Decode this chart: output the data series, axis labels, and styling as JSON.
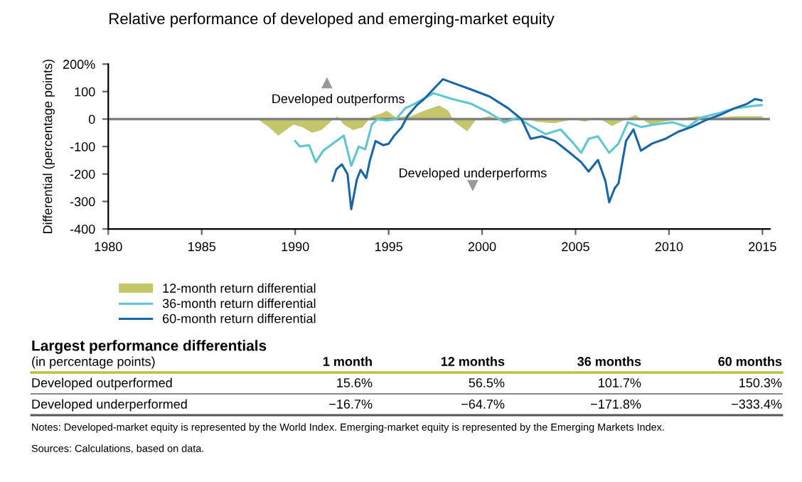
{
  "chart_data": {
    "type": "line",
    "title": "Relative performance of developed and emerging-market equity",
    "ylabel": "Differential (percentage points)",
    "xlim": [
      1980,
      2015.4
    ],
    "xticks": [
      1980,
      1985,
      1990,
      1995,
      2000,
      2005,
      2010,
      2015
    ],
    "ylim": [
      -400,
      200
    ],
    "yticks": [
      -400,
      -300,
      -200,
      -100,
      0,
      100,
      {
        "value": 200,
        "label": "200%"
      }
    ],
    "ref_lines": [
      {
        "axis": "y",
        "value": 0,
        "color": "#808080"
      }
    ],
    "legend": "bottom left",
    "grid": false,
    "series": [
      {
        "name": "12-month return differential",
        "type": "area",
        "color": "#c3c76a",
        "x": [
          1988.0,
          1988.6,
          1989.1,
          1989.5,
          1989.9,
          1990.4,
          1990.9,
          1991.4,
          1991.9,
          1992.25,
          1992.6,
          1993.1,
          1993.6,
          1994.1,
          1994.6,
          1994.9,
          1995.4,
          1995.9,
          1996.2,
          1996.9,
          1997.7,
          1998.2,
          1998.5,
          1999.2,
          1999.7,
          2000.4,
          2001.2,
          2002.2,
          2002.9,
          2003.9,
          2004.9,
          2005.5,
          2006.2,
          2006.95,
          2007.7,
          2008.2,
          2009.0,
          2009.7,
          2010.5,
          2011.5,
          2012.5,
          2013.5,
          2015.0
        ],
        "values": [
          0,
          -30,
          -60,
          -40,
          -20,
          -30,
          -50,
          -40,
          -10,
          10,
          -20,
          -40,
          -30,
          10,
          20,
          30,
          5,
          10,
          10,
          30,
          50,
          30,
          -10,
          -45,
          0,
          10,
          -10,
          5,
          -10,
          -15,
          0,
          -10,
          5,
          -25,
          0,
          15,
          -20,
          -10,
          0,
          10,
          5,
          10,
          10
        ]
      },
      {
        "name": "36-month return differential",
        "color": "#5cc6d2",
        "x": [
          1990.0,
          1990.25,
          1990.75,
          1991.1,
          1991.5,
          1992.1,
          1992.6,
          1993.0,
          1993.4,
          1993.75,
          1994.1,
          1994.4,
          1994.9,
          1995.4,
          1995.9,
          1996.4,
          1997.4,
          1998.4,
          1999.4,
          2000.4,
          2001.2,
          2001.9,
          2002.7,
          2003.4,
          2004.2,
          2004.9,
          2005.3,
          2005.7,
          2006.2,
          2006.8,
          2007.3,
          2007.8,
          2008.5,
          2009.2,
          2010.2,
          2011.0,
          2011.7,
          2012.7,
          2013.5,
          2014.5,
          2014.95
        ],
        "values": [
          -80,
          -100,
          -95,
          -157,
          -115,
          -85,
          -60,
          -170,
          -100,
          -110,
          -20,
          0,
          -5,
          0,
          40,
          56,
          94,
          73,
          56,
          22,
          -12,
          5,
          -29,
          -55,
          -38,
          -89,
          -123,
          -72,
          -63,
          -123,
          -89,
          -12,
          -29,
          -20,
          -12,
          -29,
          5,
          22,
          39,
          48,
          51
        ]
      },
      {
        "name": "60-month return differential",
        "color": "#1666a8",
        "x": [
          1992.0,
          1992.2,
          1992.5,
          1992.8,
          1993.0,
          1993.3,
          1993.5,
          1993.8,
          1994.0,
          1994.3,
          1994.7,
          1995.0,
          1995.3,
          1995.7,
          1996.0,
          1996.5,
          1996.9,
          1997.9,
          1998.7,
          1999.4,
          2000.4,
          2001.4,
          2002.1,
          2002.6,
          2003.2,
          2003.9,
          2004.7,
          2005.3,
          2005.7,
          2006.2,
          2006.6,
          2006.8,
          2007.1,
          2007.3,
          2007.7,
          2008.1,
          2008.5,
          2009.1,
          2009.8,
          2010.5,
          2011.2,
          2012.0,
          2012.7,
          2013.5,
          2014.2,
          2014.6,
          2014.95
        ],
        "values": [
          -225,
          -183,
          -165,
          -200,
          -328,
          -220,
          -185,
          -215,
          -150,
          -80,
          -95,
          -90,
          -60,
          -30,
          10,
          50,
          73,
          145,
          125,
          108,
          82,
          39,
          0,
          -72,
          -63,
          -80,
          -123,
          -157,
          -191,
          -149,
          -226,
          -303,
          -251,
          -234,
          -80,
          -38,
          -115,
          -89,
          -72,
          -46,
          -29,
          -3,
          14,
          39,
          56,
          73,
          68
        ]
      }
    ],
    "annotations": [
      "Developed outperforms",
      "Developed underperforms",
      "Largest performance differentials",
      "(in percentage points)",
      "1 month",
      "12 months",
      "36 months",
      "60 months",
      "Developed outperformed",
      "15.6%",
      "56.5%",
      "101.7%",
      "150.3%",
      "Developed underperformed",
      "−16.7%",
      "−64.7%",
      "−171.8%",
      "−333.4%",
      "Notes: Developed-market equity is represented by the World Index. Emerging-market equity is represented by the Emerging Markets Index.",
      "Sources: Calculations, based on data."
    ]
  }
}
